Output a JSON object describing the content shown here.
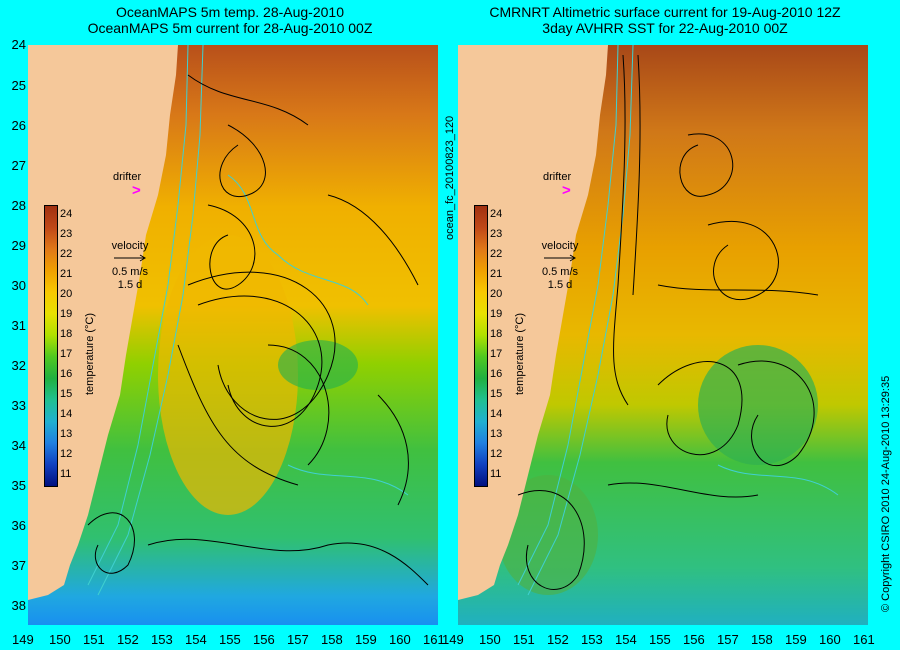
{
  "left_panel": {
    "title_line1": "OceanMAPS 5m temp. 28-Aug-2010",
    "title_line2": "OceanMAPS 5m current for 28-Aug-2010 00Z"
  },
  "right_panel": {
    "title_line1": "CMRNRT Altimetric surface current for 19-Aug-2010 12Z",
    "title_line2": "3day AVHRR SST for 22-Aug-2010 00Z"
  },
  "lat_labels": [
    "24",
    "25",
    "26",
    "27",
    "28",
    "29",
    "30",
    "31",
    "32",
    "33",
    "34",
    "35",
    "36",
    "37",
    "38"
  ],
  "lon_labels": [
    "149",
    "150",
    "151",
    "152",
    "153",
    "154",
    "155",
    "156",
    "157",
    "158",
    "159",
    "160",
    "161"
  ],
  "colorbar": {
    "ticks": [
      "24",
      "23",
      "22",
      "21",
      "20",
      "19",
      "18",
      "17",
      "16",
      "15",
      "14",
      "13",
      "12",
      "11"
    ],
    "title": "temperature (°C)"
  },
  "drifter_label": "drifter",
  "drifter_marker": ">",
  "velocity": {
    "label": "velocity",
    "speed": "0.5 m/s",
    "duration": "1.5 d"
  },
  "file_id": "ocean_fc_20100823_120",
  "copyright": "© Copyright CSIRO 2010   24-Aug-2010 13:29:35",
  "colors": {
    "background": "#00ffff",
    "land": "#f5c89a",
    "drifter": "#ff00ff",
    "contour": "#40d0d0"
  }
}
